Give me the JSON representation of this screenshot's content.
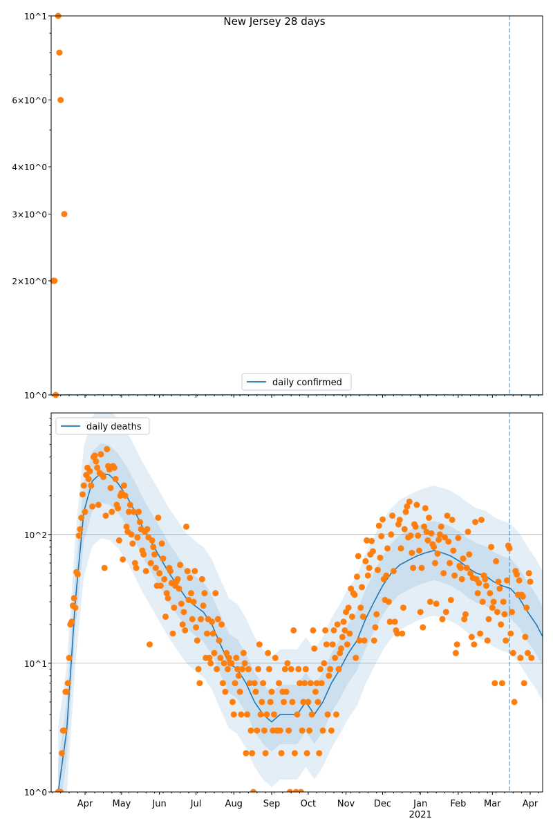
{
  "chart_data": [
    {
      "type": "scatter",
      "title": "New Jersey 28 days",
      "yscale": "log",
      "ylim": [
        1,
        10
      ],
      "ytick_labels": [
        "10^0",
        "2×10^0",
        "3×10^0",
        "4×10^0",
        "6×10^0",
        "10^1"
      ],
      "ytick_values": [
        1,
        2,
        3,
        4,
        6,
        10
      ],
      "legend": {
        "label": "daily confirmed",
        "placement": "lower-center"
      },
      "line_series": {
        "name": "daily confirmed",
        "value": 1
      },
      "points": [
        {
          "date": "2020-03-06",
          "value": 2
        },
        {
          "date": "2020-03-07",
          "value": 2
        },
        {
          "date": "2020-03-08",
          "value": 1
        },
        {
          "date": "2020-03-10",
          "value": 10
        },
        {
          "date": "2020-03-11",
          "value": 8
        },
        {
          "date": "2020-03-12",
          "value": 6
        },
        {
          "date": "2020-03-15",
          "value": 3
        }
      ],
      "vline_date": "2021-03-15"
    },
    {
      "type": "line",
      "yscale": "log",
      "ylim": [
        1,
        880
      ],
      "ytick_labels": [
        "10^0",
        "10^1",
        "10^2"
      ],
      "ytick_values": [
        1,
        10,
        100
      ],
      "grid": true,
      "xtick_labels": [
        "Apr",
        "May",
        "Jun",
        "Jul",
        "Aug",
        "Sep",
        "Oct",
        "Nov",
        "Dec",
        "Jan",
        "Feb",
        "Mar",
        "Apr"
      ],
      "xtick_dates": [
        "2020-04-01",
        "2020-05-01",
        "2020-06-01",
        "2020-07-01",
        "2020-08-01",
        "2020-09-01",
        "2020-10-01",
        "2020-11-01",
        "2020-12-01",
        "2021-01-01",
        "2021-02-01",
        "2021-03-01",
        "2021-04-01"
      ],
      "year_label": "2021",
      "legend": {
        "label": "daily deaths",
        "placement": "upper-left"
      },
      "trend": {
        "name": "daily deaths",
        "start_date": "2020-03-10",
        "step_days": 7,
        "values": [
          1,
          3,
          30,
          150,
          260,
          300,
          290,
          250,
          200,
          150,
          110,
          85,
          65,
          50,
          40,
          32,
          28,
          25,
          20,
          14,
          10,
          9,
          7,
          5,
          4,
          3.5,
          4,
          4,
          4,
          5,
          4,
          5,
          7,
          9,
          12,
          15,
          22,
          30,
          40,
          50,
          58,
          63,
          68,
          72,
          75,
          72,
          68,
          62,
          55,
          50,
          48,
          43,
          40,
          38,
          32,
          25,
          20,
          15
        ],
        "band_factors": [
          1.7,
          3.2
        ]
      },
      "scatter": {
        "start_date": "2020-03-10",
        "values": [
          1,
          1,
          1,
          2,
          3,
          3,
          6,
          6,
          7,
          11,
          20,
          21,
          28,
          32,
          27,
          51,
          49,
          98,
          110,
          135,
          205,
          240,
          150,
          290,
          330,
          270,
          310,
          240,
          165,
          400,
          410,
          370,
          330,
          170,
          300,
          420,
          290,
          280,
          55,
          140,
          460,
          340,
          320,
          230,
          150,
          340,
          330,
          270,
          170,
          160,
          90,
          200,
          210,
          64,
          240,
          200,
          115,
          105,
          150,
          170,
          100,
          85,
          150,
          60,
          55,
          95,
          150,
          125,
          110,
          75,
          70,
          105,
          52,
          110,
          95,
          14,
          60,
          90,
          80,
          70,
          55,
          40,
          135,
          50,
          40,
          85,
          65,
          45,
          23,
          35,
          32,
          55,
          52,
          42,
          17,
          27,
          40,
          43,
          45,
          38,
          58,
          29,
          20,
          25,
          18,
          115,
          52,
          31,
          46,
          35,
          22,
          30,
          52,
          19,
          15,
          9,
          7,
          22,
          45,
          28,
          35,
          11,
          17,
          22,
          11,
          10,
          21,
          17,
          12,
          35,
          9,
          22,
          15,
          11,
          20,
          7,
          10,
          6,
          12,
          9,
          11,
          10,
          10,
          5,
          4,
          7,
          11,
          9,
          8,
          6,
          4,
          9,
          12,
          10,
          2,
          4,
          9,
          7,
          3,
          2,
          1,
          7,
          6,
          3,
          9,
          14,
          4,
          5,
          7,
          3,
          2,
          4,
          12,
          9,
          5,
          6,
          3,
          4,
          11,
          3,
          3,
          7,
          3,
          2,
          6,
          5,
          9,
          6,
          10,
          3,
          1,
          9,
          5,
          18,
          2,
          1,
          4,
          9,
          7,
          1,
          3,
          5,
          7,
          9,
          2,
          5,
          3,
          7,
          4,
          18,
          13,
          6,
          7,
          5,
          2,
          9,
          7,
          3,
          10,
          18,
          14,
          4,
          8,
          9,
          3,
          14,
          18,
          11,
          4,
          20,
          9,
          12,
          13,
          16,
          21,
          18,
          25,
          14,
          27,
          17,
          38,
          23,
          35,
          34,
          11,
          47,
          68,
          15,
          27,
          39,
          23,
          15,
          62,
          90,
          48,
          55,
          70,
          89,
          74,
          15,
          19,
          24,
          53,
          117,
          66,
          97,
          131,
          45,
          31,
          48,
          78,
          30,
          21,
          100,
          140,
          52,
          21,
          18,
          17,
          120,
          130,
          78,
          17,
          27,
          110,
          150,
          165,
          95,
          180,
          98,
          72,
          55,
          120,
          115,
          170,
          98,
          75,
          25,
          55,
          19,
          115,
          160,
          105,
          90,
          135,
          30,
          102,
          84,
          80,
          60,
          29,
          71,
          91,
          100,
          115,
          22,
          50,
          95,
          25,
          140,
          88,
          60,
          31,
          130,
          75,
          48,
          12,
          14,
          94,
          57,
          55,
          45,
          65,
          22,
          24,
          55,
          105,
          70,
          50,
          16,
          46,
          14,
          125,
          45,
          35,
          42,
          17,
          130,
          30,
          48,
          45,
          40,
          15,
          22,
          35,
          80,
          27,
          30,
          7,
          62,
          25,
          43,
          38,
          20,
          7,
          30,
          24,
          15,
          44,
          82,
          78,
          17,
          25,
          12,
          5,
          52,
          49,
          34,
          44,
          11,
          34,
          33,
          7,
          16,
          27,
          12,
          50,
          43,
          11
        ]
      },
      "vline_date": "2021-03-15"
    }
  ],
  "colors": {
    "line": "#1f77b4",
    "points": "#ff7f0e",
    "grid": "#b0b0b0"
  }
}
